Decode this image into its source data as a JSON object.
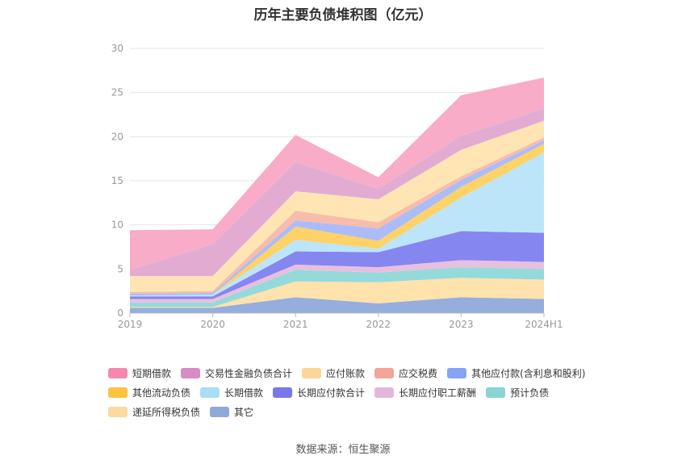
{
  "chart_data": {
    "type": "area",
    "stacked": true,
    "title": "历年主要负债堆积图（亿元）",
    "categories": [
      "2019",
      "2020",
      "2021",
      "2022",
      "2023",
      "2024H1"
    ],
    "ylim": [
      0,
      30
    ],
    "yticks": [
      0,
      5,
      10,
      15,
      20,
      25,
      30
    ],
    "grid": true,
    "legend_position": "bottom",
    "series": [
      {
        "name": "其它",
        "color": "#8FAADC",
        "values": [
          0.6,
          0.6,
          1.8,
          1.1,
          1.8,
          1.6
        ]
      },
      {
        "name": "递延所得税负债",
        "color": "#FFE0A8",
        "values": [
          0.1,
          0.1,
          1.8,
          2.4,
          2.2,
          2.2
        ]
      },
      {
        "name": "预计负债",
        "color": "#8ED8D8",
        "values": [
          0.5,
          0.5,
          1.3,
          1.1,
          1.2,
          1.2
        ]
      },
      {
        "name": "长期应付职工薪酬",
        "color": "#E8BCDC",
        "values": [
          0.4,
          0.4,
          0.6,
          0.6,
          0.8,
          0.8
        ]
      },
      {
        "name": "长期应付款合计",
        "color": "#8080F0",
        "values": [
          0.3,
          0.3,
          1.5,
          1.7,
          3.3,
          3.3
        ]
      },
      {
        "name": "长期借款",
        "color": "#B8E4FA",
        "values": [
          0.1,
          0.2,
          1.3,
          0.4,
          3.8,
          9.1
        ]
      },
      {
        "name": "其他流动负债",
        "color": "#FFD060",
        "values": [
          0.0,
          0.0,
          1.5,
          0.9,
          1.2,
          1.0
        ]
      },
      {
        "name": "其他应付款(含利息和股利)",
        "color": "#A8B8F8",
        "values": [
          0.2,
          0.2,
          0.7,
          1.4,
          0.8,
          0.4
        ]
      },
      {
        "name": "应交税费",
        "color": "#F8B8A8",
        "values": [
          0.2,
          0.2,
          1.1,
          0.7,
          0.4,
          0.3
        ]
      },
      {
        "name": "应付账款",
        "color": "#FFE4B0",
        "values": [
          1.8,
          1.7,
          2.2,
          2.6,
          3.0,
          1.9
        ]
      },
      {
        "name": "交易性金融负债合计",
        "color": "#E0A8D0",
        "values": [
          0.7,
          3.6,
          3.3,
          1.2,
          1.6,
          1.4
        ]
      },
      {
        "name": "短期借款",
        "color": "#F8A8C4",
        "values": [
          4.5,
          1.7,
          3.1,
          1.3,
          4.6,
          3.5
        ]
      }
    ]
  },
  "legend_items": [
    {
      "label": "短期借款",
      "color": "#F489B0"
    },
    {
      "label": "交易性金融负债合计",
      "color": "#D88CC4"
    },
    {
      "label": "应付账款",
      "color": "#FCD59A"
    },
    {
      "label": "应交税费",
      "color": "#F5A498"
    },
    {
      "label": "其他应付款(含利息和股利)",
      "color": "#86A4F6"
    },
    {
      "label": "其他流动负债",
      "color": "#FBC33E"
    },
    {
      "label": "长期借款",
      "color": "#A8DDF6"
    },
    {
      "label": "长期应付款合计",
      "color": "#7878EE"
    },
    {
      "label": "长期应付职工薪酬",
      "color": "#E6B6DA"
    },
    {
      "label": "预计负债",
      "color": "#8AD4D4"
    },
    {
      "label": "递延所得税负债",
      "color": "#FCD9A0"
    },
    {
      "label": "其它",
      "color": "#8EAAD8"
    }
  ],
  "source": "数据来源：恒生聚源"
}
